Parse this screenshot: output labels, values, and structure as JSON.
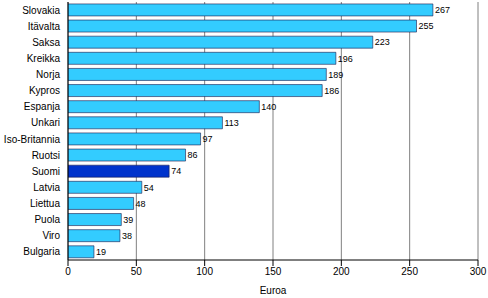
{
  "chart_data": {
    "type": "bar",
    "orientation": "horizontal",
    "categories": [
      "Slovakia",
      "Itävalta",
      "Saksa",
      "Kreikka",
      "Norja",
      "Kypros",
      "Espanja",
      "Unkari",
      "Iso-Britannia",
      "Ruotsi",
      "Suomi",
      "Latvia",
      "Liettua",
      "Puola",
      "Viro",
      "Bulgaria"
    ],
    "values": [
      267,
      255,
      223,
      196,
      189,
      186,
      140,
      113,
      97,
      86,
      74,
      54,
      48,
      39,
      38,
      19
    ],
    "colors": [
      "#33ccff",
      "#33ccff",
      "#33ccff",
      "#33ccff",
      "#33ccff",
      "#33ccff",
      "#33ccff",
      "#33ccff",
      "#33ccff",
      "#33ccff",
      "#0033cc",
      "#33ccff",
      "#33ccff",
      "#33ccff",
      "#33ccff",
      "#33ccff"
    ],
    "x_label": "Euroa",
    "xlim": [
      0,
      300
    ],
    "xticks": [
      0,
      50,
      100,
      150,
      200,
      250,
      300
    ],
    "grid": true,
    "data_labels": true
  }
}
